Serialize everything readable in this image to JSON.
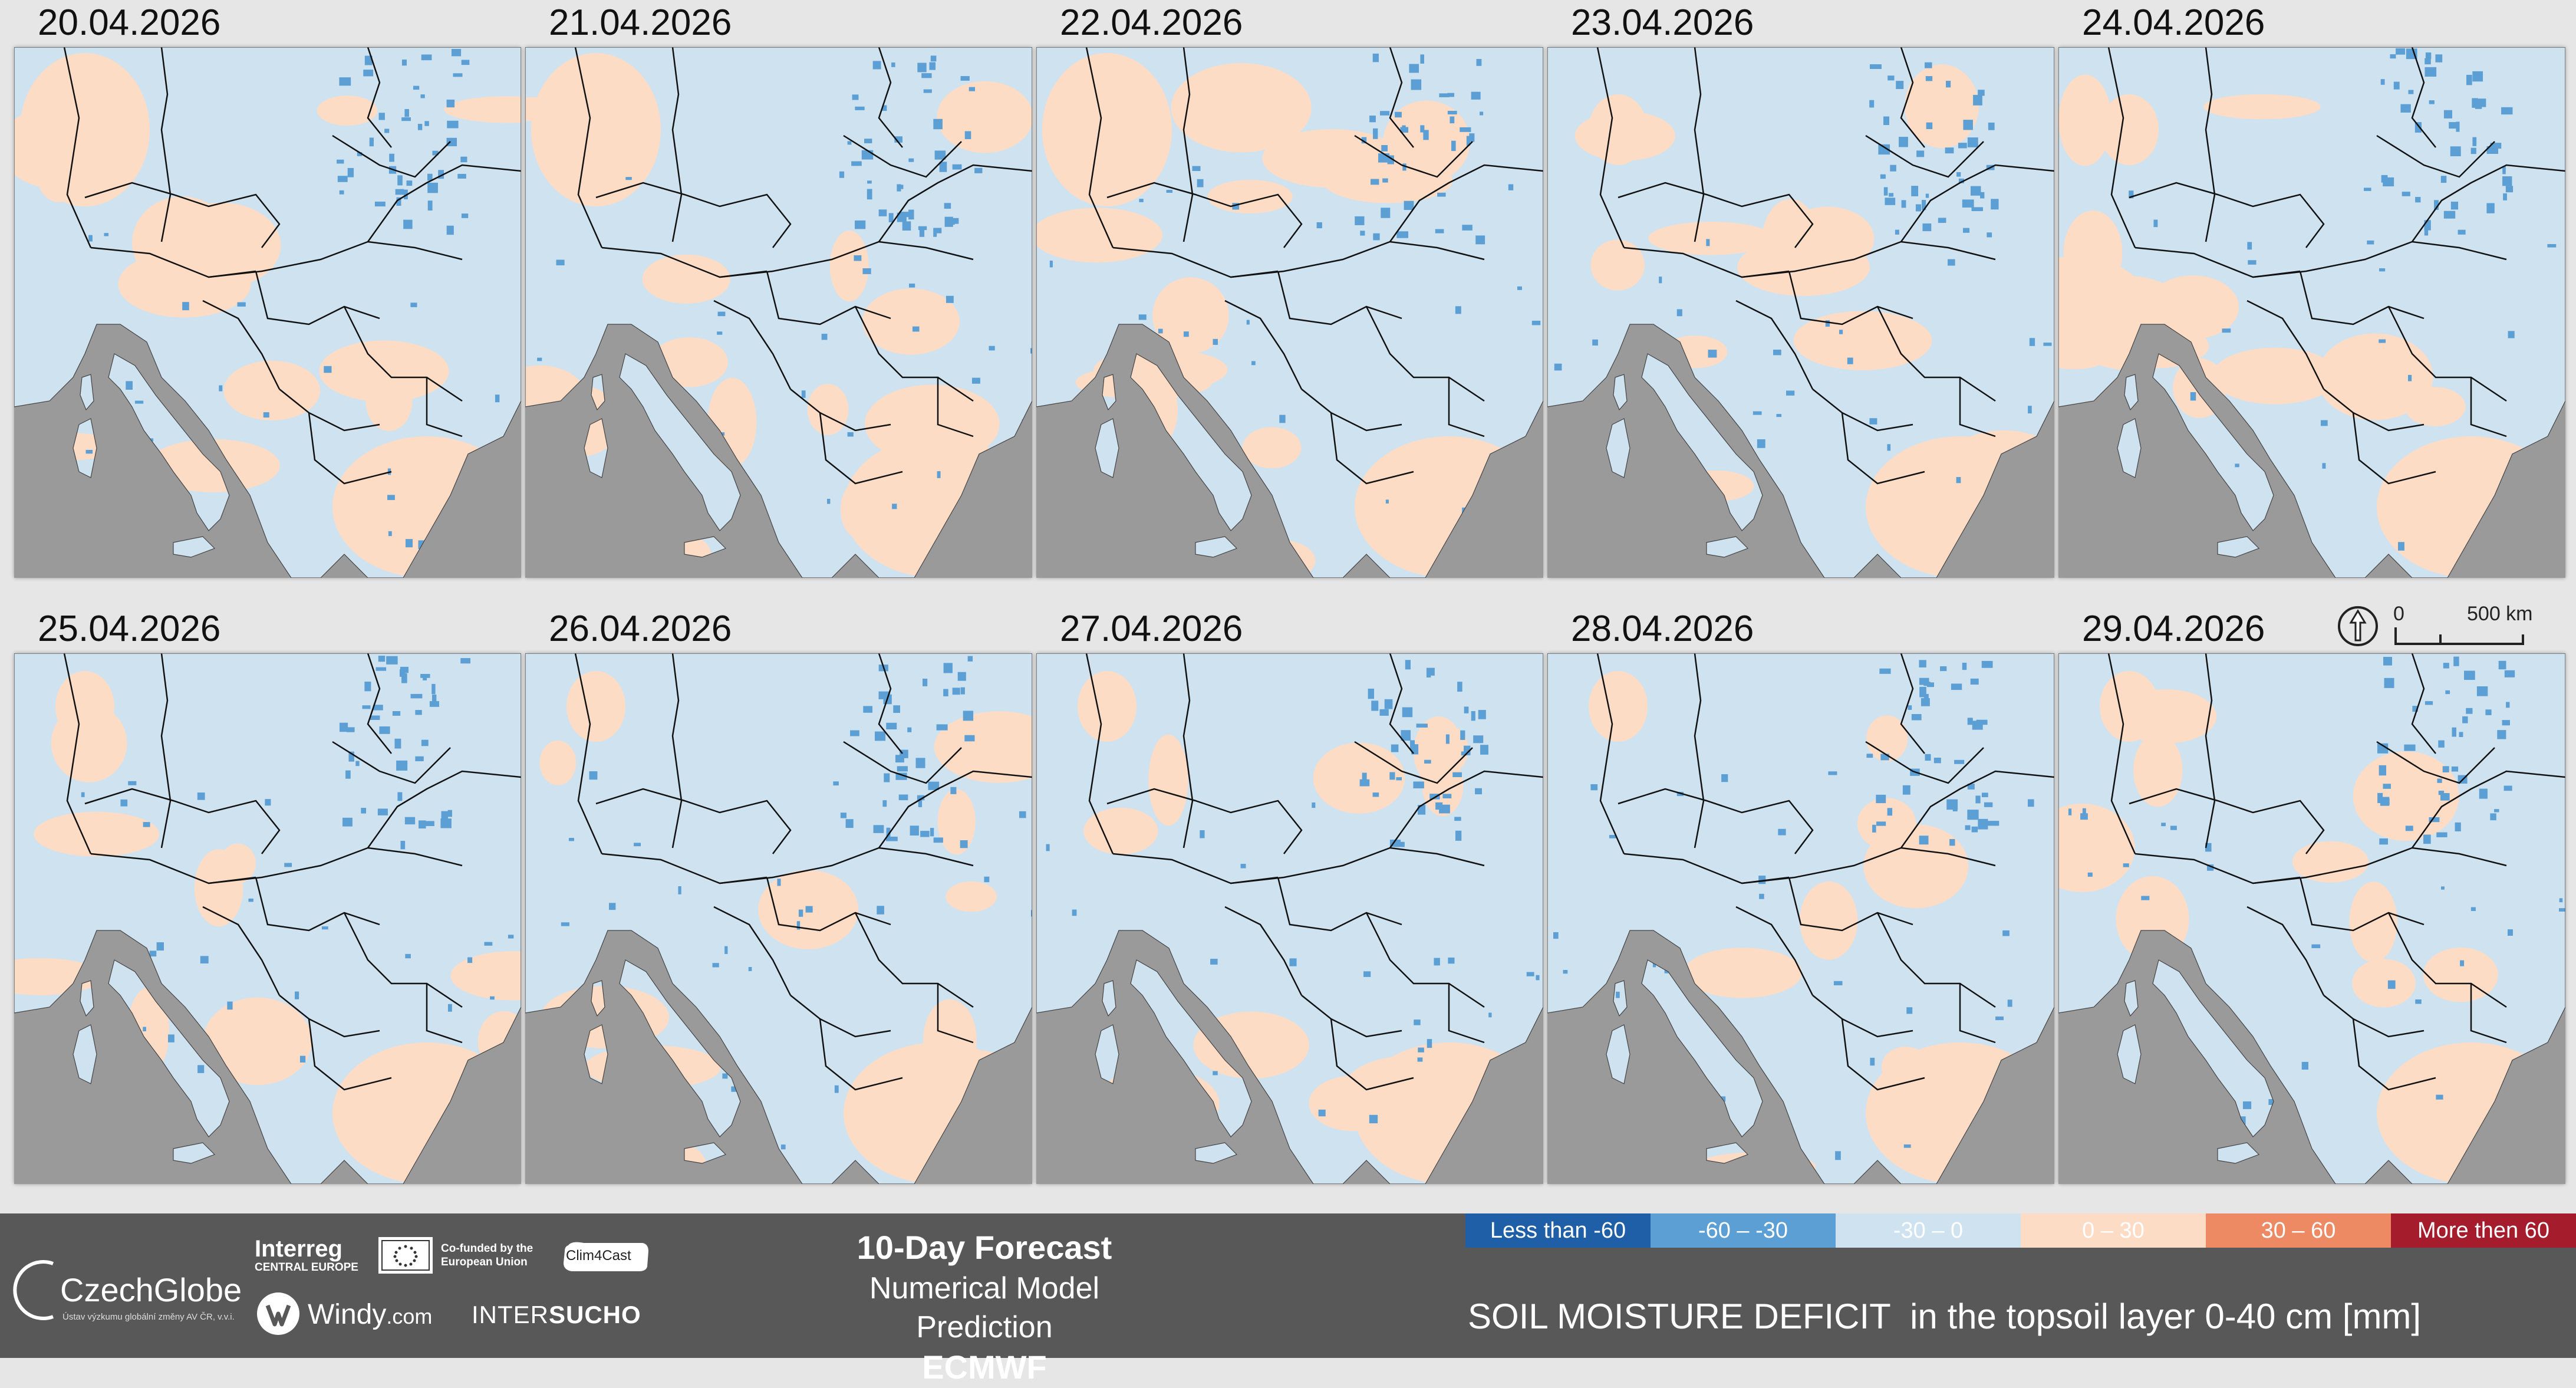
{
  "panels": [
    {
      "date": "20.04.2026"
    },
    {
      "date": "21.04.2026"
    },
    {
      "date": "22.04.2026"
    },
    {
      "date": "23.04.2026"
    },
    {
      "date": "24.04.2026"
    },
    {
      "date": "25.04.2026"
    },
    {
      "date": "26.04.2026"
    },
    {
      "date": "27.04.2026"
    },
    {
      "date": "28.04.2026"
    },
    {
      "date": "29.04.2026"
    }
  ],
  "scale": {
    "zero": "0",
    "distance": "500 km"
  },
  "footer": {
    "czechglobe": "CzechGlobe",
    "czechglobe_sub": "Ústav výzkumu globální změny AV ČR, v.v.i.",
    "interreg": "Interreg",
    "interreg_sub": "CENTRAL EUROPE",
    "cofunded": "Co-funded by the European Union",
    "clim4cast": "Clim4Cast",
    "windy": "Windy",
    "windy_com": ".com",
    "intersucho_a": "INTER",
    "intersucho_b": "SUCHO",
    "title": "10-Day Forecast",
    "subtitle": "Numerical Model Prediction",
    "model": "ECMWF"
  },
  "legend": {
    "title": "SOIL MOISTURE DEFICIT  in the topsoil layer 0-40 cm [mm]",
    "classes": [
      {
        "label": "Less than -60",
        "color": "#1f5fa8",
        "text_color": "#ffffff"
      },
      {
        "label": "-60 – -30",
        "color": "#5b9fd4",
        "text_color": "#ffffff"
      },
      {
        "label": "-30 – 0",
        "color": "#cfe2f0",
        "text_color": "#ffffff"
      },
      {
        "label": "0 – 30",
        "color": "#fddcc6",
        "text_color": "#ffffff"
      },
      {
        "label": "30 – 60",
        "color": "#ee8a63",
        "text_color": "#ffffff"
      },
      {
        "label": "More then 60",
        "color": "#a51c2c",
        "text_color": "#ffffff"
      }
    ]
  },
  "colors": {
    "sea": "#9a9a9a",
    "land_base": "#cfe2f0",
    "dry": "#fddcc6",
    "wet": "#5b9fd4",
    "border": "#111111",
    "footer_bg": "#585858",
    "page_bg": "#e6e6e6"
  }
}
